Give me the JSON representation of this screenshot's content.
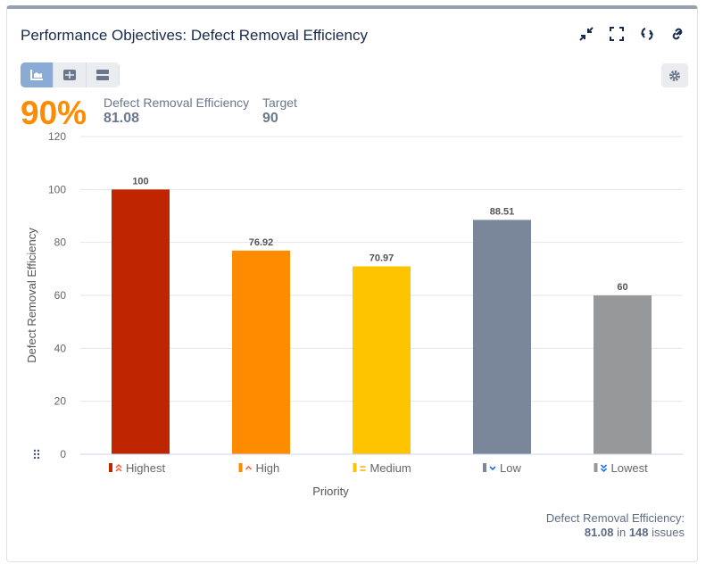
{
  "header": {
    "title": "Performance Objectives: Defect Removal Efficiency",
    "icons": [
      "collapse-icon",
      "fullscreen-icon",
      "refresh-icon",
      "link-icon"
    ]
  },
  "views": [
    "chart-view",
    "table-view",
    "list-view"
  ],
  "kpi": {
    "percent": "90%",
    "metric_label": "Defect Removal Efficiency",
    "metric_value": "81.08",
    "target_label": "Target",
    "target_value": "90",
    "percent_color": "#ff8b00"
  },
  "chart_data": {
    "type": "bar",
    "categories": [
      "Highest",
      "High",
      "Medium",
      "Low",
      "Lowest"
    ],
    "values": [
      100,
      76.92,
      70.97,
      88.51,
      60
    ],
    "value_labels": [
      "100",
      "76.92",
      "70.97",
      "88.51",
      "60"
    ],
    "colors": [
      "#bf2600",
      "#ff8b00",
      "#ffc400",
      "#7a869a",
      "#97989a"
    ],
    "xlabel": "Priority",
    "ylabel": "Defect Removal Efficiency",
    "ylim": [
      0,
      120
    ],
    "yticks": [
      "0",
      "20",
      "40",
      "60",
      "80",
      "100",
      "120"
    ],
    "grid": true
  },
  "footer": {
    "label": "Defect Removal Efficiency:",
    "value": "81.08",
    "in": "in",
    "count": "148",
    "issues": "issues"
  }
}
